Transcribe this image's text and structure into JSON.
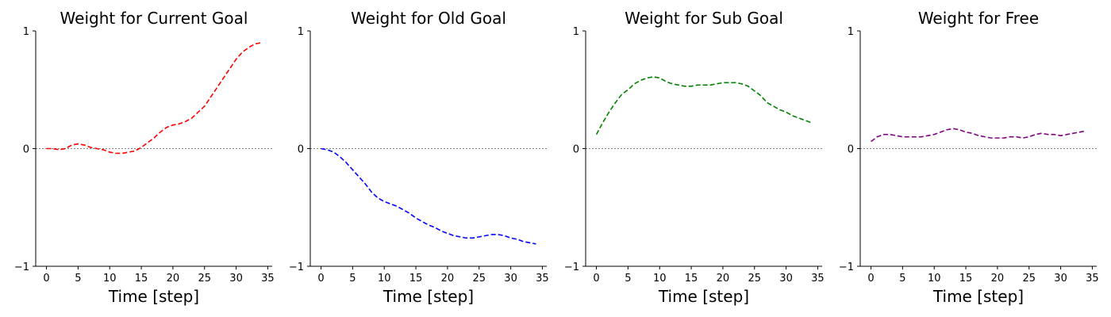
{
  "chart_data": [
    {
      "type": "line",
      "title": "Weight for Current Goal",
      "xlabel": "Time [step]",
      "ylabel": "",
      "xlim": [
        -1.7,
        35.7
      ],
      "ylim": [
        -1,
        1
      ],
      "xticks": [
        0,
        5,
        10,
        15,
        20,
        25,
        30,
        35
      ],
      "yticks": [
        -1,
        0,
        1
      ],
      "ytick_labels": [
        "−1",
        "0",
        "1"
      ],
      "zero_line": true,
      "color": "#ff0000",
      "linestyle": "dashed",
      "series": [
        {
          "x": [
            0,
            1,
            2,
            3,
            4,
            5,
            6,
            7,
            8,
            9,
            10,
            11,
            12,
            13,
            14,
            15,
            16,
            17,
            18,
            19,
            20,
            21,
            22,
            23,
            24,
            25,
            26,
            27,
            28,
            29,
            30,
            31,
            32,
            33,
            34
          ],
          "values": [
            0.0,
            0.0,
            -0.01,
            0.0,
            0.03,
            0.04,
            0.03,
            0.01,
            0.0,
            -0.01,
            -0.03,
            -0.04,
            -0.04,
            -0.03,
            -0.02,
            0.01,
            0.05,
            0.09,
            0.14,
            0.18,
            0.2,
            0.21,
            0.23,
            0.26,
            0.31,
            0.36,
            0.44,
            0.52,
            0.6,
            0.68,
            0.76,
            0.82,
            0.86,
            0.89,
            0.9
          ]
        }
      ]
    },
    {
      "type": "line",
      "title": "Weight for Old Goal",
      "xlabel": "Time [step]",
      "ylabel": "",
      "xlim": [
        -1.7,
        35.7
      ],
      "ylim": [
        -1,
        1
      ],
      "xticks": [
        0,
        5,
        10,
        15,
        20,
        25,
        30,
        35
      ],
      "yticks": [
        -1,
        0,
        1
      ],
      "ytick_labels": [
        "−1",
        "0",
        "1"
      ],
      "zero_line": true,
      "color": "#0000ff",
      "linestyle": "dashed",
      "series": [
        {
          "x": [
            0,
            1,
            2,
            3,
            4,
            5,
            6,
            7,
            8,
            9,
            10,
            11,
            12,
            13,
            14,
            15,
            16,
            17,
            18,
            19,
            20,
            21,
            22,
            23,
            24,
            25,
            26,
            27,
            28,
            29,
            30,
            31,
            32,
            33,
            34
          ],
          "values": [
            0.0,
            -0.01,
            -0.03,
            -0.07,
            -0.12,
            -0.18,
            -0.24,
            -0.3,
            -0.37,
            -0.42,
            -0.45,
            -0.47,
            -0.49,
            -0.52,
            -0.55,
            -0.59,
            -0.62,
            -0.65,
            -0.67,
            -0.7,
            -0.72,
            -0.74,
            -0.75,
            -0.76,
            -0.76,
            -0.75,
            -0.74,
            -0.73,
            -0.73,
            -0.74,
            -0.76,
            -0.77,
            -0.79,
            -0.8,
            -0.81
          ]
        }
      ]
    },
    {
      "type": "line",
      "title": "Weight for Sub Goal",
      "xlabel": "Time [step]",
      "ylabel": "",
      "xlim": [
        -1.7,
        35.7
      ],
      "ylim": [
        -1,
        1
      ],
      "xticks": [
        0,
        5,
        10,
        15,
        20,
        25,
        30,
        35
      ],
      "yticks": [
        -1,
        0,
        1
      ],
      "ytick_labels": [
        "−1",
        "0",
        "1"
      ],
      "zero_line": true,
      "color": "#008000",
      "linestyle": "dashed",
      "series": [
        {
          "x": [
            0,
            1,
            2,
            3,
            4,
            5,
            6,
            7,
            8,
            9,
            10,
            11,
            12,
            13,
            14,
            15,
            16,
            17,
            18,
            19,
            20,
            21,
            22,
            23,
            24,
            25,
            26,
            27,
            28,
            29,
            30,
            31,
            32,
            33,
            34
          ],
          "values": [
            0.12,
            0.22,
            0.31,
            0.39,
            0.46,
            0.5,
            0.55,
            0.58,
            0.6,
            0.61,
            0.6,
            0.57,
            0.55,
            0.54,
            0.53,
            0.53,
            0.54,
            0.54,
            0.54,
            0.55,
            0.56,
            0.56,
            0.56,
            0.55,
            0.53,
            0.49,
            0.45,
            0.39,
            0.36,
            0.33,
            0.31,
            0.28,
            0.26,
            0.24,
            0.22
          ]
        }
      ]
    },
    {
      "type": "line",
      "title": "Weight for Free",
      "xlabel": "Time [step]",
      "ylabel": "",
      "xlim": [
        -1.7,
        35.7
      ],
      "ylim": [
        -1,
        1
      ],
      "xticks": [
        0,
        5,
        10,
        15,
        20,
        25,
        30,
        35
      ],
      "yticks": [
        -1,
        0,
        1
      ],
      "ytick_labels": [
        "−1",
        "0",
        "1"
      ],
      "zero_line": true,
      "color": "#800080",
      "linestyle": "dashed",
      "series": [
        {
          "x": [
            0,
            1,
            2,
            3,
            4,
            5,
            6,
            7,
            8,
            9,
            10,
            11,
            12,
            13,
            14,
            15,
            16,
            17,
            18,
            19,
            20,
            21,
            22,
            23,
            24,
            25,
            26,
            27,
            28,
            29,
            30,
            31,
            32,
            33,
            34
          ],
          "values": [
            0.06,
            0.1,
            0.12,
            0.12,
            0.11,
            0.1,
            0.1,
            0.1,
            0.1,
            0.11,
            0.12,
            0.14,
            0.16,
            0.17,
            0.16,
            0.14,
            0.13,
            0.11,
            0.1,
            0.09,
            0.09,
            0.09,
            0.1,
            0.1,
            0.09,
            0.1,
            0.12,
            0.13,
            0.12,
            0.12,
            0.11,
            0.12,
            0.13,
            0.14,
            0.15
          ]
        }
      ]
    }
  ]
}
